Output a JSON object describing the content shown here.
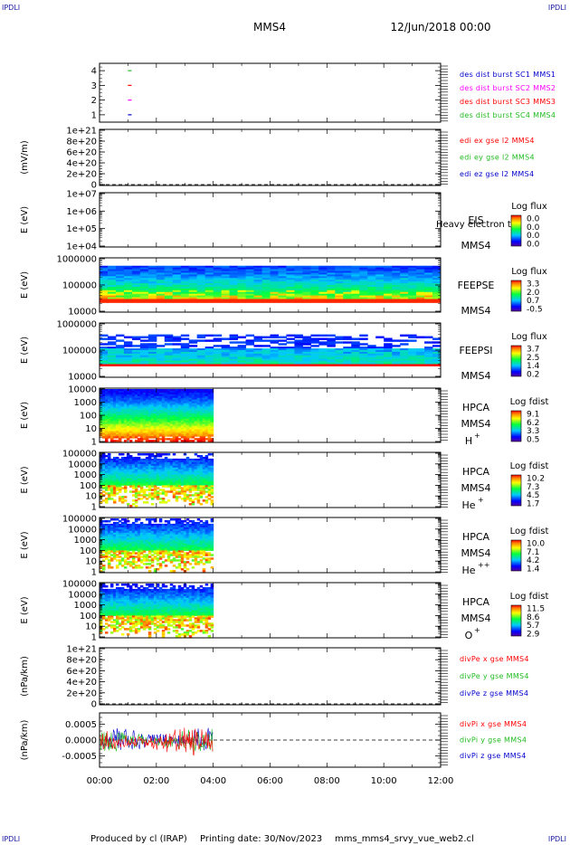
{
  "header": {
    "title": "MMS4",
    "date": "12/Jun/2018 00:00",
    "corner_left_top": "IPDLI",
    "corner_right_top": "IPDLI",
    "corner_left_bottom": "IPDLI",
    "corner_right_bottom": "IPDLI"
  },
  "footer": {
    "produced": "Produced by cl (IRAP)",
    "printing": "Printing date: 30/Nov/2023",
    "file": "mms_mms4_srvy_vue_web2.cl"
  },
  "chart_data": {
    "type": "multi-panel time series / spectrogram",
    "x_ticks": [
      "00:00",
      "02:00",
      "04:00",
      "06:00",
      "08:00",
      "10:00",
      "12:00"
    ],
    "x_range_hours": [
      0,
      12
    ],
    "panels": [
      {
        "id": "burst",
        "type": "line",
        "ylabel": "",
        "y_ticks": [
          "1",
          "2",
          "3",
          "4"
        ],
        "ylim": [
          0.5,
          4.5
        ],
        "markers": [
          {
            "y": 4,
            "x_hour": 1.0,
            "color": "#22bb22"
          },
          {
            "y": 3,
            "x_hour": 1.0,
            "color": "#ff0000"
          },
          {
            "y": 2,
            "x_hour": 1.0,
            "color": "#ff00ff"
          },
          {
            "y": 1,
            "x_hour": 1.0,
            "color": "#0000cc"
          }
        ],
        "legend": [
          {
            "text": "des dist burst SC1 MMS1",
            "color": "#0000cc"
          },
          {
            "text": "des dist burst SC2 MMS2",
            "color": "#ff00ff"
          },
          {
            "text": "des dist burst SC3 MMS3",
            "color": "#ff0000"
          },
          {
            "text": "des dist burst SC4 MMS4",
            "color": "#22bb22"
          }
        ]
      },
      {
        "id": "edi",
        "type": "line",
        "ylabel": "(mV/m)",
        "y_ticks": [
          "0",
          "2e+20",
          "4e+20",
          "6e+20",
          "8e+20",
          "1e+21"
        ],
        "zero_line": true,
        "legend": [
          {
            "text": "edi ex gse l2 MMS4",
            "color": "#ff0000"
          },
          {
            "text": "edi ey gse l2 MMS4",
            "color": "#22bb22"
          },
          {
            "text": "edi ez gse l2 MMS4",
            "color": "#0000cc"
          }
        ]
      },
      {
        "id": "eis",
        "type": "heatmap",
        "ylabel": "E (eV)",
        "y_ticks": [
          "1e+04",
          "1e+05",
          "1e+06",
          "1e+07"
        ],
        "instrument": "EIS",
        "spacecraft": "MMS4",
        "extra_label": "Heavy electron to",
        "cbar_title": "Log flux",
        "cbar_ticks": [
          "0.0",
          "0.0",
          "0.0",
          "0.0"
        ],
        "data_extent_hours": [
          0,
          0
        ]
      },
      {
        "id": "feepse",
        "type": "heatmap",
        "ylabel": "E (eV)",
        "y_ticks": [
          "10000",
          "100000",
          "1000000"
        ],
        "instrument": "FEEPSE",
        "spacecraft": "MMS4",
        "cbar_title": "Log flux",
        "cbar_ticks": [
          "3.3",
          "2.0",
          "0.7",
          "-0.5"
        ],
        "data_extent_hours": [
          0,
          12
        ]
      },
      {
        "id": "feepsi",
        "type": "heatmap",
        "ylabel": "E (eV)",
        "y_ticks": [
          "10000",
          "100000",
          "1000000"
        ],
        "instrument": "FEEPSI",
        "spacecraft": "MMS4",
        "cbar_title": "Log flux",
        "cbar_ticks": [
          "3.7",
          "2.5",
          "1.4",
          "0.2"
        ],
        "data_extent_hours": [
          0,
          12
        ]
      },
      {
        "id": "hpca_h",
        "type": "heatmap",
        "ylabel": "E (eV)",
        "y_ticks": [
          "1",
          "10",
          "100",
          "1000",
          "10000"
        ],
        "instrument": "HPCA",
        "spacecraft": "MMS4",
        "species": "H",
        "species_sup": "+",
        "cbar_title": "Log fdist",
        "cbar_ticks": [
          "9.1",
          "6.2",
          "3.3",
          "0.5"
        ],
        "data_extent_hours": [
          0,
          4
        ]
      },
      {
        "id": "hpca_he",
        "type": "heatmap",
        "ylabel": "E (eV)",
        "y_ticks": [
          "1",
          "10",
          "100",
          "1000",
          "10000",
          "100000"
        ],
        "instrument": "HPCA",
        "spacecraft": "MMS4",
        "species": "He",
        "species_sup": "+",
        "cbar_title": "Log fdist",
        "cbar_ticks": [
          "10.2",
          "7.3",
          "4.5",
          "1.7"
        ],
        "data_extent_hours": [
          0,
          4
        ]
      },
      {
        "id": "hpca_he2",
        "type": "heatmap",
        "ylabel": "E (eV)",
        "y_ticks": [
          "1",
          "10",
          "100",
          "1000",
          "10000",
          "100000"
        ],
        "instrument": "HPCA",
        "spacecraft": "MMS4",
        "species": "He",
        "species_sup": "++",
        "cbar_title": "Log fdist",
        "cbar_ticks": [
          "10.0",
          "7.1",
          "4.2",
          "1.4"
        ],
        "data_extent_hours": [
          0,
          4
        ]
      },
      {
        "id": "hpca_o",
        "type": "heatmap",
        "ylabel": "E (eV)",
        "y_ticks": [
          "1",
          "10",
          "100",
          "1000",
          "10000",
          "100000"
        ],
        "instrument": "HPCA",
        "spacecraft": "MMS4",
        "species": "O",
        "species_sup": "+",
        "cbar_title": "Log fdist",
        "cbar_ticks": [
          "11.5",
          "8.6",
          "5.7",
          "2.9"
        ],
        "data_extent_hours": [
          0,
          4
        ]
      },
      {
        "id": "divpe",
        "type": "line",
        "ylabel": "(nPa/km)",
        "y_ticks": [
          "0",
          "2e+20",
          "4e+20",
          "6e+20",
          "8e+20",
          "1e+21"
        ],
        "zero_line": true,
        "legend": [
          {
            "text": "divPe x gse MMS4",
            "color": "#ff0000"
          },
          {
            "text": "divPe y gse MMS4",
            "color": "#22bb22"
          },
          {
            "text": "divPe z gse MMS4",
            "color": "#0000cc"
          }
        ]
      },
      {
        "id": "divpi",
        "type": "line",
        "ylabel": "(nPa/km)",
        "y_ticks": [
          "-0.0005",
          "0.0000",
          "0.0005"
        ],
        "ylim": [
          -0.00085,
          0.00085
        ],
        "zero_line": true,
        "data_extent_hours": [
          0,
          4
        ],
        "legend": [
          {
            "text": "divPi x gse MMS4",
            "color": "#ff0000"
          },
          {
            "text": "divPi y gse MMS4",
            "color": "#22bb22"
          },
          {
            "text": "divPi z gse MMS4",
            "color": "#0000cc"
          }
        ]
      }
    ]
  }
}
